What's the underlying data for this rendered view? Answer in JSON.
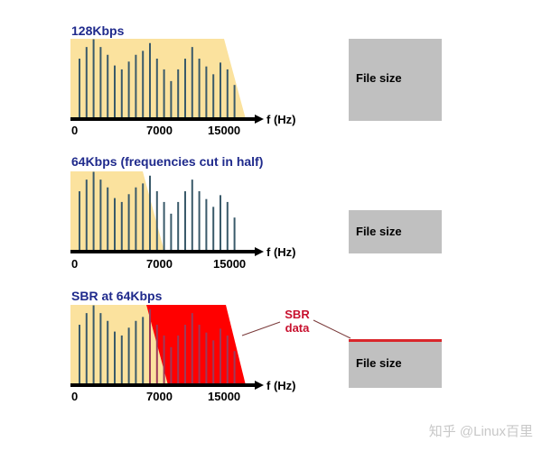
{
  "panels": [
    {
      "title": "128Kbps",
      "ticks": [
        "0",
        "7000",
        "15000"
      ],
      "axis_label": "f (Hz)",
      "file_label": "File size"
    },
    {
      "title": "64Kbps  (frequencies cut in half)",
      "ticks": [
        "0",
        "7000",
        "15000"
      ],
      "axis_label": "f (Hz)",
      "file_label": "File size"
    },
    {
      "title": "SBR at 64Kbps",
      "ticks": [
        "0",
        "7000",
        "15000"
      ],
      "axis_label": "f (Hz)",
      "file_label": "File size"
    }
  ],
  "sbr_annotation": {
    "line1": "SBR",
    "line2": "data"
  },
  "colors": {
    "title": "#1f2a8c",
    "spectrum_fill": "#fbe29e",
    "bar": "#3a5a6a",
    "sbr": "#ff0000",
    "filebox": "#c0c0c0"
  },
  "watermark": "知乎 @Linux百里",
  "chart_data": {
    "type": "bar",
    "title": "Spectral Band Replication comparison",
    "xlabel": "f (Hz)",
    "x_ticks": [
      "0",
      "7000",
      "15000"
    ],
    "bar_relative_heights": [
      62,
      74,
      82,
      74,
      66,
      55,
      51,
      59,
      66,
      70,
      78,
      62,
      51,
      39,
      51,
      62,
      74,
      62,
      54,
      46,
      58,
      51,
      35
    ],
    "series": [
      {
        "name": "128Kbps",
        "passband": "0-~16000 Hz"
      },
      {
        "name": "64Kbps",
        "passband": "0-~7000 Hz"
      },
      {
        "name": "SBR at 64Kbps",
        "passband": "0-~7000 Hz + SBR data above"
      }
    ],
    "file_sizes": [
      "large",
      "half",
      "half + thin SBR layer"
    ]
  }
}
